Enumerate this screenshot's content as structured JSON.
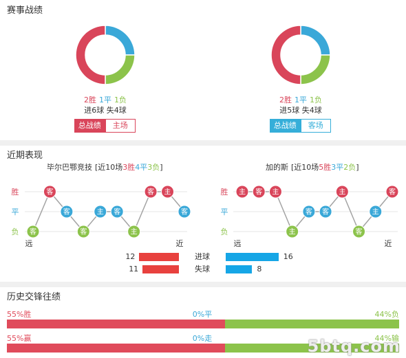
{
  "colors": {
    "win": "#d9455a",
    "draw": "#3aa8d8",
    "loss": "#8cc34b",
    "home": "#d9455a",
    "away": "#35aed9",
    "goals_home": "#e8413e",
    "goals_away": "#16a6e6",
    "history_win": "#e04b5b",
    "history_loss": "#8cc34b"
  },
  "record": {
    "title": "赛事战绩",
    "teams": [
      {
        "goals_text": "进6球 失4球",
        "tab_overall": "总战绩",
        "tab_venue": "主场"
      },
      {
        "goals_text": "进5球 失4球",
        "tab_overall": "总战绩",
        "tab_venue": "客场"
      }
    ]
  },
  "recent": {
    "title": "近期表现"
  },
  "history": {
    "title": "历史交锋往绩"
  },
  "watermark": "5btq.com",
  "chart_data": [
    {
      "type": "pie",
      "categories": [
        "2胜",
        "1平",
        "1负"
      ],
      "values": [
        2,
        1,
        1
      ]
    },
    {
      "type": "pie",
      "categories": [
        "2胜",
        "1平",
        "1负"
      ],
      "values": [
        2,
        1,
        1
      ]
    },
    {
      "type": "line",
      "team": "毕尔巴鄂竞技",
      "summary": {
        "prefix": "[近10场",
        "wins": "3胜",
        "draws": "4平",
        "losses": "3负",
        "suffix": "]"
      },
      "y_categories": [
        "胜",
        "平",
        "负"
      ],
      "x_labels": [
        "远",
        "近"
      ],
      "venues": [
        "客",
        "客",
        "客",
        "客",
        "主",
        "客",
        "主",
        "客",
        "主",
        "客"
      ],
      "results": [
        "负",
        "胜",
        "平",
        "负",
        "平",
        "平",
        "负",
        "胜",
        "胜",
        "平"
      ]
    },
    {
      "type": "line",
      "team": "加的斯",
      "summary": {
        "prefix": "[近10场",
        "wins": "5胜",
        "draws": "3平",
        "losses": "2负",
        "suffix": "]"
      },
      "y_categories": [
        "胜",
        "平",
        "负"
      ],
      "x_labels": [
        "远",
        "近"
      ],
      "venues": [
        "主",
        "客",
        "主",
        "主",
        "客",
        "客",
        "主",
        "客",
        "主",
        "客"
      ],
      "results": [
        "胜",
        "胜",
        "胜",
        "负",
        "平",
        "平",
        "胜",
        "负",
        "平",
        "胜"
      ]
    },
    {
      "type": "bar",
      "orientation": "horizontal",
      "categories": [
        "进球",
        "失球"
      ],
      "series": [
        {
          "values": [
            12,
            11
          ]
        },
        {
          "values": [
            16,
            8
          ]
        }
      ]
    },
    {
      "type": "bar",
      "orientation": "horizontal",
      "stacked": true,
      "rows": [
        {
          "labels": [
            "55%胜",
            "0%平",
            "44%负"
          ],
          "values": [
            55,
            0,
            44
          ]
        },
        {
          "labels": [
            "55%赢",
            "0%走",
            "44%输"
          ],
          "values": [
            55,
            0,
            44
          ]
        }
      ]
    }
  ]
}
